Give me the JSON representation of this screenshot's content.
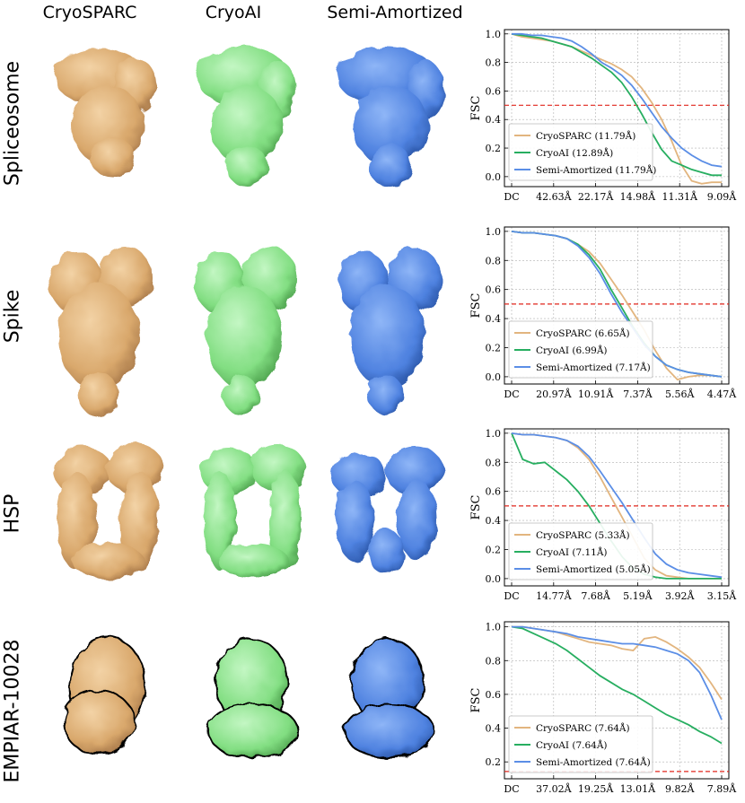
{
  "columns": [
    "CryoSPARC",
    "CryoAI",
    "Semi-Amortized"
  ],
  "rows": [
    "Spliceosome",
    "Spike",
    "HSP",
    "EMPIAR-10028"
  ],
  "colors": {
    "cryosparc": "#e2b57f",
    "cryoai": "#27ae60",
    "semi": "#5b8ee6",
    "threshold": "#e0261c",
    "struct_cryosparc": "#e8bf8a",
    "struct_cryoai": "#8fe88f",
    "struct_semi": "#5b8def"
  },
  "chart_data": [
    {
      "type": "line",
      "ylabel": "FSC",
      "ylim": [
        -0.07,
        1.03
      ],
      "yticks": [
        0.0,
        0.2,
        0.4,
        0.6,
        0.8,
        1.0
      ],
      "xticks": [
        "DC",
        "42.63Å",
        "22.17Å",
        "14.98Å",
        "11.31Å",
        "9.09Å"
      ],
      "threshold": 0.5,
      "grid": true,
      "legend_position": "bottom-left",
      "series": [
        {
          "name": "CryoSPARC (11.79Å)",
          "color_key": "cryosparc",
          "values": [
            1.0,
            0.98,
            0.97,
            0.96,
            0.95,
            0.93,
            0.91,
            0.88,
            0.85,
            0.82,
            0.79,
            0.75,
            0.7,
            0.62,
            0.52,
            0.4,
            0.25,
            0.08,
            -0.03,
            -0.05,
            -0.04,
            -0.04
          ]
        },
        {
          "name": "CryoAI (12.89Å)",
          "color_key": "cryoai",
          "values": [
            1.0,
            0.99,
            0.98,
            0.97,
            0.95,
            0.93,
            0.91,
            0.87,
            0.83,
            0.78,
            0.73,
            0.66,
            0.56,
            0.44,
            0.31,
            0.19,
            0.11,
            0.08,
            0.05,
            0.03,
            0.01,
            0.01
          ]
        },
        {
          "name": "Semi-Amortized (11.79Å)",
          "color_key": "semi",
          "values": [
            1.0,
            1.0,
            0.99,
            0.99,
            0.98,
            0.97,
            0.95,
            0.91,
            0.86,
            0.8,
            0.76,
            0.71,
            0.64,
            0.55,
            0.45,
            0.35,
            0.27,
            0.2,
            0.15,
            0.11,
            0.08,
            0.07
          ]
        }
      ]
    },
    {
      "type": "line",
      "ylabel": "FSC",
      "ylim": [
        -0.05,
        1.03
      ],
      "yticks": [
        0.0,
        0.2,
        0.4,
        0.6,
        0.8,
        1.0
      ],
      "xticks": [
        "DC",
        "20.97Å",
        "10.91Å",
        "7.37Å",
        "5.56Å",
        "4.47Å"
      ],
      "threshold": 0.5,
      "grid": true,
      "legend_position": "bottom-left",
      "series": [
        {
          "name": "CryoSPARC (6.65Å)",
          "color_key": "cryosparc",
          "values": [
            1.0,
            0.99,
            0.99,
            0.98,
            0.97,
            0.95,
            0.91,
            0.86,
            0.78,
            0.67,
            0.56,
            0.44,
            0.32,
            0.18,
            0.06,
            -0.02,
            0.0,
            0.01,
            0.01,
            0.0
          ]
        },
        {
          "name": "CryoAI (6.99Å)",
          "color_key": "cryoai",
          "values": [
            1.0,
            0.99,
            0.99,
            0.98,
            0.97,
            0.95,
            0.91,
            0.84,
            0.74,
            0.6,
            0.47,
            0.34,
            0.23,
            0.14,
            0.08,
            0.05,
            0.03,
            0.02,
            0.01,
            0.0
          ]
        },
        {
          "name": "Semi-Amortized (7.17Å)",
          "color_key": "semi",
          "values": [
            1.0,
            0.99,
            0.99,
            0.98,
            0.97,
            0.95,
            0.9,
            0.82,
            0.71,
            0.57,
            0.44,
            0.33,
            0.22,
            0.14,
            0.08,
            0.05,
            0.03,
            0.02,
            0.01,
            0.0
          ]
        }
      ]
    },
    {
      "type": "line",
      "ylabel": "FSC",
      "ylim": [
        -0.05,
        1.03
      ],
      "yticks": [
        0.0,
        0.2,
        0.4,
        0.6,
        0.8,
        1.0
      ],
      "xticks": [
        "DC",
        "14.77Å",
        "7.68Å",
        "5.19Å",
        "3.92Å",
        "3.15Å"
      ],
      "threshold": 0.5,
      "grid": true,
      "legend_position": "bottom-left",
      "series": [
        {
          "name": "CryoSPARC (5.33Å)",
          "color_key": "cryosparc",
          "values": [
            1.0,
            0.99,
            0.99,
            0.98,
            0.97,
            0.95,
            0.9,
            0.82,
            0.7,
            0.56,
            0.42,
            0.28,
            0.14,
            0.06,
            0.02,
            0.01,
            0.0,
            0.0,
            0.0,
            0.0
          ]
        },
        {
          "name": "CryoAI (7.11Å)",
          "color_key": "cryoai",
          "values": [
            1.0,
            0.82,
            0.79,
            0.8,
            0.74,
            0.68,
            0.6,
            0.5,
            0.38,
            0.26,
            0.15,
            0.07,
            0.03,
            0.01,
            0.0,
            0.0,
            0.0,
            0.0,
            0.0,
            0.0
          ]
        },
        {
          "name": "Semi-Amortized (5.05Å)",
          "color_key": "semi",
          "values": [
            1.0,
            0.99,
            0.99,
            0.98,
            0.97,
            0.95,
            0.91,
            0.84,
            0.74,
            0.63,
            0.52,
            0.4,
            0.28,
            0.17,
            0.1,
            0.06,
            0.04,
            0.03,
            0.02,
            0.01
          ]
        }
      ]
    },
    {
      "type": "line",
      "ylabel": "FSC",
      "ylim": [
        0.1,
        1.03
      ],
      "yticks": [
        0.2,
        0.4,
        0.6,
        0.8,
        1.0
      ],
      "xticks": [
        "DC",
        "37.02Å",
        "19.25Å",
        "13.01Å",
        "9.82Å",
        "7.89Å"
      ],
      "threshold": 0.143,
      "grid": true,
      "legend_position": "bottom-left",
      "series": [
        {
          "name": "CryoSPARC (7.64Å)",
          "color_key": "cryosparc",
          "values": [
            1.0,
            1.0,
            0.99,
            0.98,
            0.97,
            0.95,
            0.93,
            0.91,
            0.9,
            0.89,
            0.87,
            0.86,
            0.93,
            0.94,
            0.91,
            0.87,
            0.82,
            0.76,
            0.67,
            0.57
          ]
        },
        {
          "name": "CryoAI (7.64Å)",
          "color_key": "cryoai",
          "values": [
            1.0,
            0.99,
            0.96,
            0.93,
            0.9,
            0.86,
            0.81,
            0.76,
            0.71,
            0.67,
            0.63,
            0.6,
            0.56,
            0.52,
            0.48,
            0.45,
            0.42,
            0.38,
            0.35,
            0.31
          ]
        },
        {
          "name": "Semi-Amortized (7.64Å)",
          "color_key": "semi",
          "values": [
            1.0,
            1.0,
            0.99,
            0.98,
            0.97,
            0.96,
            0.94,
            0.93,
            0.92,
            0.91,
            0.9,
            0.9,
            0.89,
            0.88,
            0.86,
            0.84,
            0.8,
            0.73,
            0.6,
            0.45
          ]
        }
      ]
    }
  ]
}
